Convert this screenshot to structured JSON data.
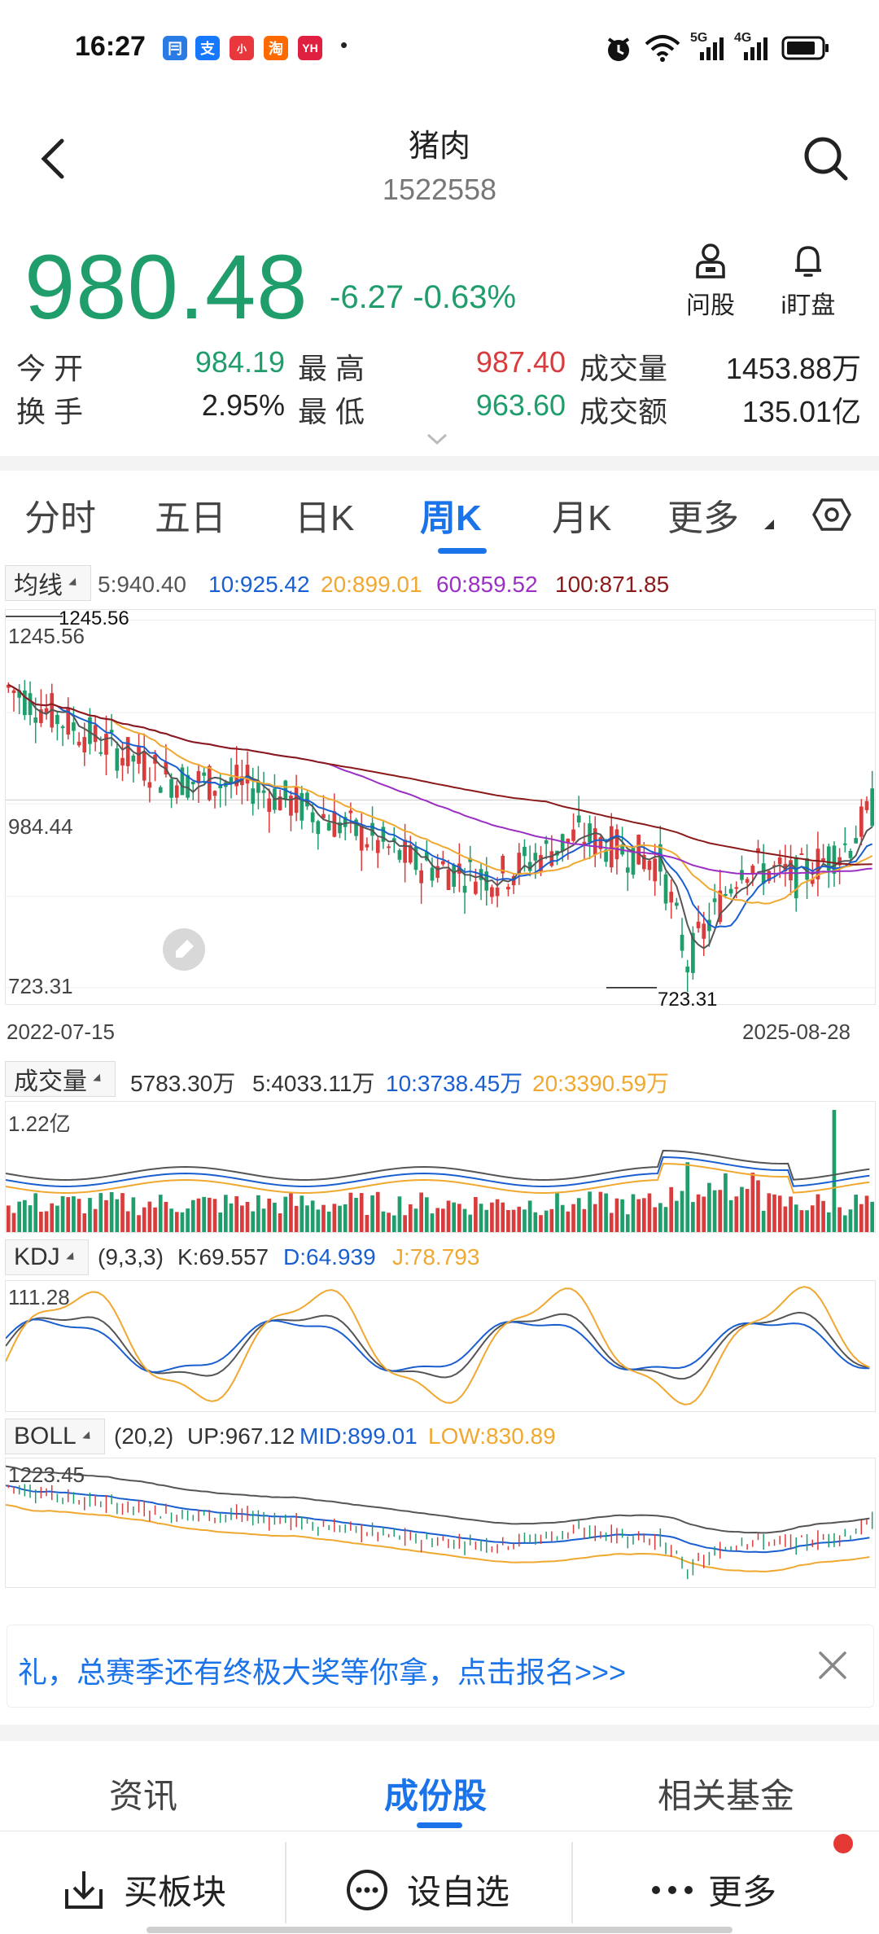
{
  "status_bar": {
    "time": "16:27",
    "app_icons": [
      {
        "name": "notif-app-1",
        "glyph": "冃",
        "color": "#2b7be4"
      },
      {
        "name": "alipay-icon",
        "glyph": "支",
        "color": "#1677ff"
      },
      {
        "name": "notif-app-3",
        "glyph": "小",
        "color": "#e8383d"
      },
      {
        "name": "taobao-icon",
        "glyph": "淘",
        "color": "#ff6a00"
      },
      {
        "name": "notif-app-5",
        "glyph": "YH",
        "color": "#e02040"
      }
    ],
    "dot": "•",
    "network1": "5G",
    "network2": "4G"
  },
  "header": {
    "title": "猪肉",
    "code": "1522558"
  },
  "quote": {
    "price": "980.48",
    "change": "-6.27 -0.63%"
  },
  "actions": [
    {
      "label": "问股"
    },
    {
      "label": "i盯盘"
    }
  ],
  "stats": {
    "open_label": "今开",
    "open": "984.19",
    "high_label": "最高",
    "high": "987.40",
    "vol_label": "成交量",
    "vol": "1453.88万",
    "turn_label": "换手",
    "turn": "2.95%",
    "low_label": "最低",
    "low": "963.60",
    "amt_label": "成交额",
    "amt": "135.01亿"
  },
  "tabs": [
    "分时",
    "五日",
    "日K",
    "周K",
    "月K",
    "更多"
  ],
  "active_tab": "周K",
  "ma": {
    "btn": "均线",
    "ma5": "5:940.40",
    "ma10": "10:925.42",
    "ma20": "20:899.01",
    "ma60": "60:859.52",
    "ma100": "100:871.85"
  },
  "kline": {
    "top": "1245.56",
    "mid": "984.44",
    "low": "723.31",
    "max_mark": "1245.56",
    "min_mark": "723.31",
    "date_start": "2022-07-15",
    "date_end": "2025-08-28"
  },
  "volume": {
    "btn": "成交量",
    "v": "5783.30万",
    "v5": "5:4033.11万",
    "v10": "10:3738.45万",
    "v20": "20:3390.59万",
    "axis_top": "1.22亿"
  },
  "kdj": {
    "btn": "KDJ",
    "params": "(9,3,3)",
    "k": "K:69.557",
    "d": "D:64.939",
    "j": "J:78.793",
    "axis_top": "111.28"
  },
  "boll": {
    "btn": "BOLL",
    "params": "(20,2)",
    "up": "UP:967.12",
    "mid": "MID:899.01",
    "low": "LOW:830.89",
    "axis_top": "1223.45"
  },
  "banner": {
    "text": "礼，总赛季还有终极大奖等你拿，点击报名>>>"
  },
  "bottom_tabs": [
    "资讯",
    "成份股",
    "相关基金"
  ],
  "bottom_active": "成份股",
  "bottom_buttons": {
    "buy": "买板块",
    "watch": "设自选",
    "more": "更多"
  },
  "colors": {
    "up": "#d93c3c",
    "down": "#1f9d6b",
    "accent": "#1a73e8",
    "ma5": "#555555",
    "ma10": "#1a5fd0",
    "ma20": "#f0a830",
    "ma60": "#9b2fc4",
    "ma100": "#8b1a1a"
  }
}
